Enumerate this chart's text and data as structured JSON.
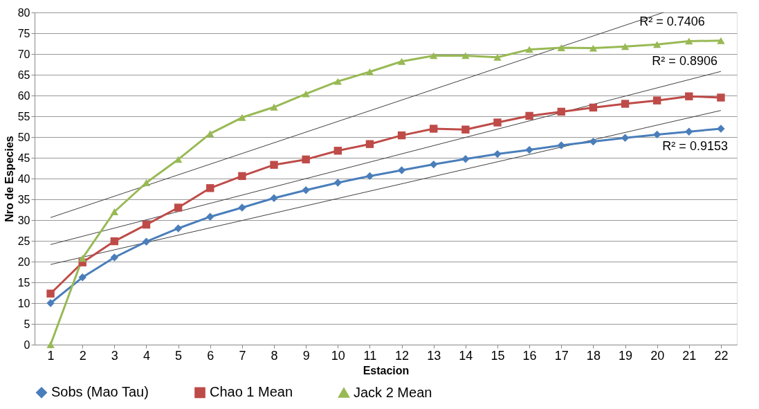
{
  "chart_data": {
    "type": "line",
    "xlabel": "Estacion",
    "ylabel": "Nro de Especies",
    "x": [
      1,
      2,
      3,
      4,
      5,
      6,
      7,
      8,
      9,
      10,
      11,
      12,
      13,
      14,
      15,
      16,
      17,
      18,
      19,
      20,
      21,
      22
    ],
    "xlim": [
      0.5,
      22.5
    ],
    "xticks": [
      1,
      2,
      3,
      4,
      5,
      6,
      7,
      8,
      9,
      10,
      11,
      12,
      13,
      14,
      15,
      16,
      17,
      18,
      19,
      20,
      21,
      22
    ],
    "ylim": [
      0,
      80
    ],
    "yticks": [
      0,
      5,
      10,
      15,
      20,
      25,
      30,
      35,
      40,
      45,
      50,
      55,
      60,
      65,
      70,
      75,
      80
    ],
    "grid": "y",
    "legend": "bottom",
    "series": [
      {
        "name": "Sobs (Mao Tau)",
        "color": "#4a7ebb",
        "marker": "diamond",
        "values": [
          10,
          16.2,
          21,
          24.8,
          28,
          30.8,
          33,
          35.3,
          37.2,
          39,
          40.6,
          42,
          43.4,
          44.7,
          45.9,
          46.9,
          48,
          48.9,
          49.8,
          50.6,
          51.3,
          52
        ]
      },
      {
        "name": "Chao 1 Mean",
        "color": "#be4b48",
        "marker": "square",
        "values": [
          12.3,
          19.8,
          24.9,
          28.9,
          33,
          37.7,
          40.6,
          43.3,
          44.6,
          46.7,
          48.3,
          50.4,
          52,
          51.8,
          53.5,
          55.1,
          56.1,
          57.1,
          58,
          58.8,
          59.8,
          59.5
        ]
      },
      {
        "name": "Jack 2 Mean",
        "color": "#98b954",
        "marker": "triangle",
        "values": [
          0,
          20.8,
          32,
          39,
          44.6,
          50.8,
          54.7,
          57.2,
          60.4,
          63.4,
          65.7,
          68.2,
          69.6,
          69.6,
          69.2,
          71.1,
          71.5,
          71.4,
          71.8,
          72.3,
          73.1,
          73.2
        ]
      },
      {
        "type": "line",
        "color": "#404040",
        "x": [
          1,
          20.2
        ],
        "values": [
          30.6,
          80
        ]
      },
      {
        "type": "line",
        "color": "#404040",
        "x": [
          1,
          22
        ],
        "values": [
          24.1,
          65.8
        ]
      },
      {
        "type": "line",
        "color": "#404040",
        "x": [
          1,
          22
        ],
        "values": [
          19.3,
          56.4
        ]
      }
    ],
    "annotations": [
      "R² = 0.7406",
      "R² = 0.8906",
      "R² = 0.9153"
    ]
  }
}
